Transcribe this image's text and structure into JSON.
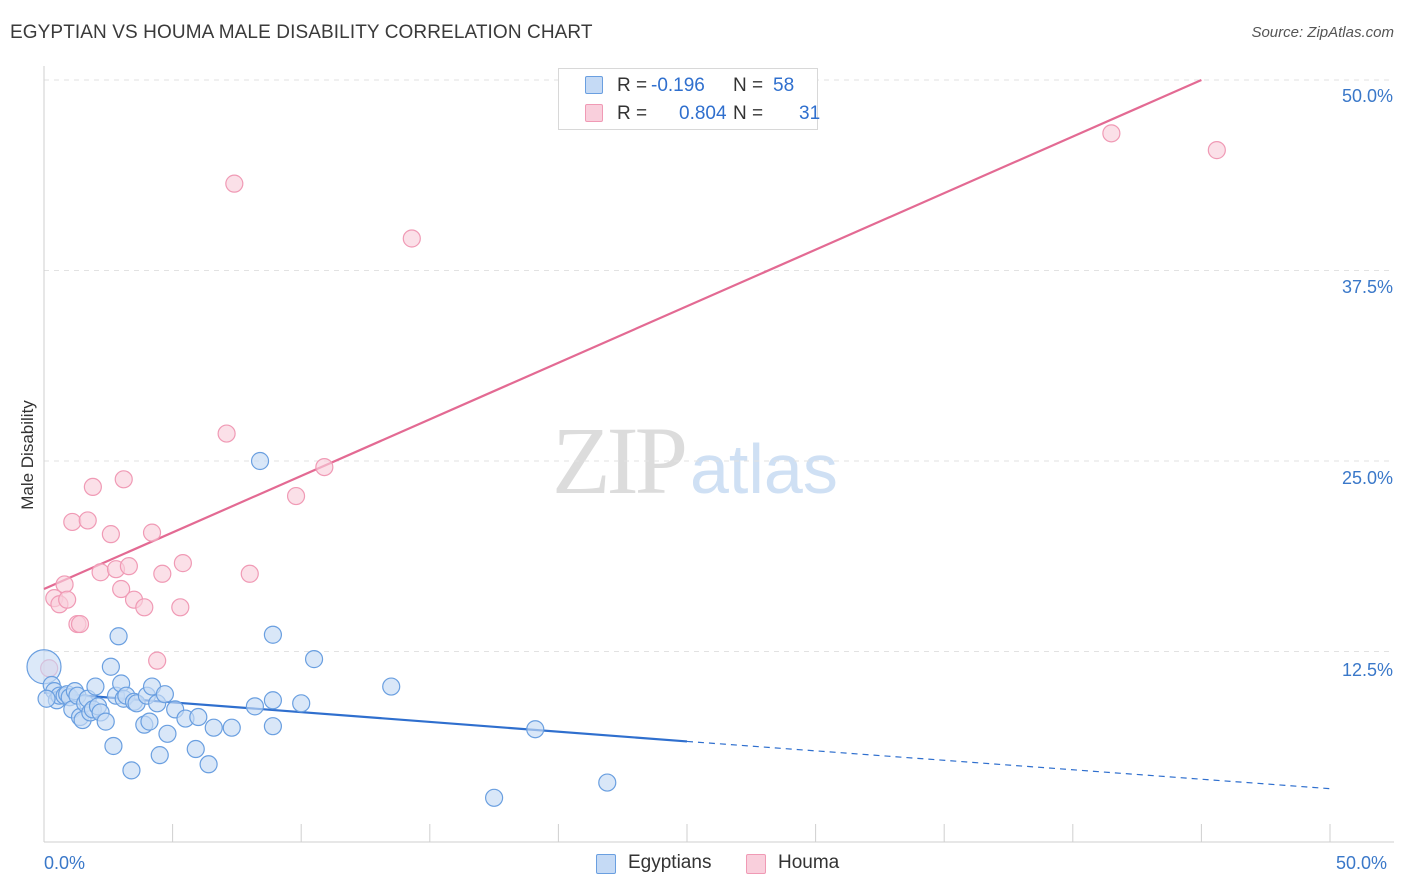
{
  "title": "EGYPTIAN VS HOUMA MALE DISABILITY CORRELATION CHART",
  "source": "Source: ZipAtlas.com",
  "watermark": {
    "zip": "ZIP",
    "atlas": "atlas"
  },
  "legend_stats": [
    {
      "name": "Egyptians",
      "r_label": "R =",
      "r_value": "-0.196",
      "n_label": "N =",
      "n_value": "58"
    },
    {
      "name": "Houma",
      "r_label": "R =",
      "r_value": "0.804",
      "n_label": "N =",
      "n_value": "31"
    }
  ],
  "colors": {
    "egyptians_fill": "#c5daf5",
    "egyptians_stroke": "#6a9fe0",
    "egyptians_line": "#2f6fce",
    "houma_fill": "#f9cfdc",
    "houma_stroke": "#f09ab5",
    "houma_line": "#e36a93",
    "grid": "#e2e2e2",
    "tick_label": "#3a78c9"
  },
  "chart_data": {
    "type": "scatter",
    "title": "EGYPTIAN VS HOUMA MALE DISABILITY CORRELATION CHART",
    "xlabel": "",
    "ylabel": "Male Disability",
    "xlim": [
      0,
      50
    ],
    "ylim": [
      0,
      50
    ],
    "x_tick_labels": [
      "0.0%",
      "50.0%"
    ],
    "y_ticks": [
      12.5,
      25.0,
      37.5,
      50.0
    ],
    "y_tick_labels": [
      "12.5%",
      "25.0%",
      "37.5%",
      "50.0%"
    ],
    "legend": [
      "Egyptians",
      "Houma"
    ],
    "series": [
      {
        "name": "Egyptians",
        "points": [
          [
            0.0,
            11.5
          ],
          [
            0.3,
            10.3
          ],
          [
            0.4,
            9.9
          ],
          [
            0.5,
            9.3
          ],
          [
            0.6,
            9.6
          ],
          [
            0.8,
            9.6
          ],
          [
            0.9,
            9.7
          ],
          [
            1.0,
            9.5
          ],
          [
            1.1,
            8.7
          ],
          [
            1.2,
            9.9
          ],
          [
            1.3,
            9.6
          ],
          [
            1.4,
            8.2
          ],
          [
            1.5,
            8.0
          ],
          [
            1.6,
            9.1
          ],
          [
            1.7,
            9.4
          ],
          [
            1.8,
            8.5
          ],
          [
            1.9,
            8.7
          ],
          [
            2.0,
            10.2
          ],
          [
            2.1,
            8.9
          ],
          [
            2.2,
            8.5
          ],
          [
            2.4,
            7.9
          ],
          [
            2.6,
            11.5
          ],
          [
            2.7,
            6.3
          ],
          [
            2.8,
            9.6
          ],
          [
            2.9,
            13.5
          ],
          [
            3.0,
            10.4
          ],
          [
            3.1,
            9.4
          ],
          [
            3.2,
            9.6
          ],
          [
            3.4,
            4.7
          ],
          [
            3.5,
            9.2
          ],
          [
            3.6,
            9.1
          ],
          [
            3.9,
            7.7
          ],
          [
            4.0,
            9.6
          ],
          [
            4.1,
            7.9
          ],
          [
            4.2,
            10.2
          ],
          [
            4.4,
            9.1
          ],
          [
            4.5,
            5.7
          ],
          [
            4.7,
            9.7
          ],
          [
            4.8,
            7.1
          ],
          [
            5.1,
            8.7
          ],
          [
            5.5,
            8.1
          ],
          [
            5.9,
            6.1
          ],
          [
            6.0,
            8.2
          ],
          [
            6.4,
            5.1
          ],
          [
            6.6,
            7.5
          ],
          [
            7.3,
            7.5
          ],
          [
            8.2,
            8.9
          ],
          [
            8.4,
            25.0
          ],
          [
            8.9,
            13.6
          ],
          [
            8.9,
            9.3
          ],
          [
            8.9,
            7.6
          ],
          [
            10.0,
            9.1
          ],
          [
            10.5,
            12.0
          ],
          [
            13.5,
            10.2
          ],
          [
            17.5,
            2.9
          ],
          [
            19.1,
            7.4
          ],
          [
            21.9,
            3.9
          ],
          [
            0.1,
            9.4
          ]
        ],
        "trend": {
          "x": [
            0,
            25
          ],
          "y": [
            9.8,
            6.6
          ]
        },
        "trend_extension": {
          "x": [
            25,
            50
          ],
          "y": [
            6.6,
            3.5
          ]
        }
      },
      {
        "name": "Houma",
        "points": [
          [
            0.2,
            11.4
          ],
          [
            0.4,
            16.0
          ],
          [
            0.6,
            15.6
          ],
          [
            0.8,
            16.9
          ],
          [
            0.9,
            15.9
          ],
          [
            1.1,
            21.0
          ],
          [
            1.3,
            14.3
          ],
          [
            1.4,
            14.3
          ],
          [
            1.7,
            21.1
          ],
          [
            1.9,
            23.3
          ],
          [
            2.2,
            17.7
          ],
          [
            2.6,
            20.2
          ],
          [
            2.8,
            17.9
          ],
          [
            3.0,
            16.6
          ],
          [
            3.1,
            23.8
          ],
          [
            3.3,
            18.1
          ],
          [
            3.5,
            15.9
          ],
          [
            3.9,
            15.4
          ],
          [
            4.2,
            20.3
          ],
          [
            4.4,
            11.9
          ],
          [
            4.6,
            17.6
          ],
          [
            5.3,
            15.4
          ],
          [
            5.4,
            18.3
          ],
          [
            7.1,
            26.8
          ],
          [
            7.4,
            43.2
          ],
          [
            8.0,
            17.6
          ],
          [
            9.8,
            22.7
          ],
          [
            10.9,
            24.6
          ],
          [
            14.3,
            39.6
          ],
          [
            41.5,
            46.5
          ],
          [
            45.6,
            45.4
          ]
        ],
        "trend": {
          "x": [
            0,
            45
          ],
          "y": [
            16.6,
            50
          ]
        }
      }
    ]
  }
}
